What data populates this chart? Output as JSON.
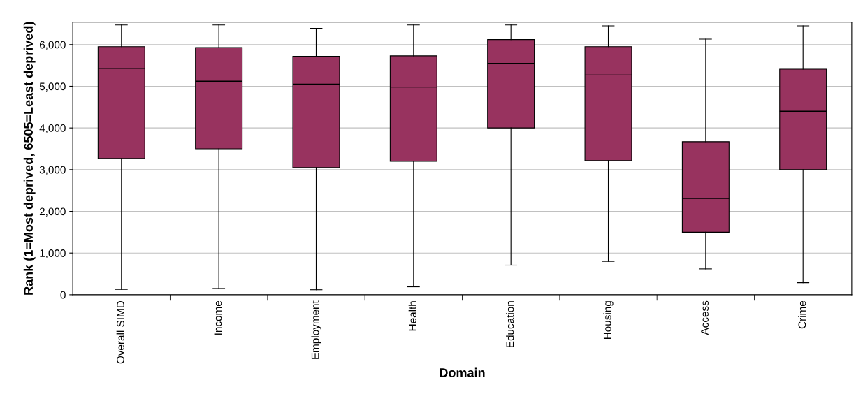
{
  "chart_data": {
    "type": "box",
    "xlabel": "Domain",
    "ylabel": "Rank (1=Most deprived, 6505=Least deprived)",
    "categories": [
      "Overall SIMD",
      "Income",
      "Employment",
      "Health",
      "Education",
      "Housing",
      "Access",
      "Crime"
    ],
    "color": "#98335f",
    "boxes": [
      {
        "low": 130,
        "q1": 3270,
        "median": 5430,
        "q3": 5950,
        "high": 6470
      },
      {
        "low": 150,
        "q1": 3500,
        "median": 5120,
        "q3": 5930,
        "high": 6470
      },
      {
        "low": 120,
        "q1": 3050,
        "median": 5050,
        "q3": 5720,
        "high": 6390
      },
      {
        "low": 190,
        "q1": 3200,
        "median": 4980,
        "q3": 5730,
        "high": 6470
      },
      {
        "low": 710,
        "q1": 4000,
        "median": 5550,
        "q3": 6120,
        "high": 6470
      },
      {
        "low": 800,
        "q1": 3220,
        "median": 5270,
        "q3": 5950,
        "high": 6450
      },
      {
        "low": 620,
        "q1": 1500,
        "median": 2310,
        "q3": 3670,
        "high": 6130
      },
      {
        "low": 290,
        "q1": 3000,
        "median": 4400,
        "q3": 5410,
        "high": 6450
      }
    ],
    "ylim": [
      0,
      6540
    ],
    "yticks": [
      0,
      {
        "value": 1000,
        "label": "1,000"
      },
      {
        "value": 2000,
        "label": "2,000"
      },
      {
        "value": 3000,
        "label": "3,000"
      },
      {
        "value": 4000,
        "label": "4,000"
      },
      {
        "value": 5000,
        "label": "5,000"
      },
      {
        "value": 6000,
        "label": "6,000"
      }
    ],
    "grid": "y"
  }
}
